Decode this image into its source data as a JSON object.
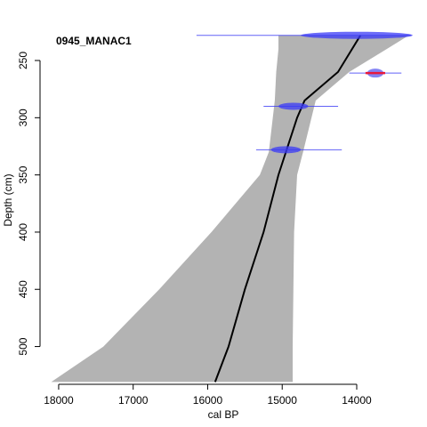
{
  "chart_data": {
    "type": "age-depth",
    "title": "0945_MANAC1",
    "xlabel": "cal BP",
    "ylabel": "Depth (cm)",
    "x_reversed": true,
    "xlim": [
      18250,
      13200
    ],
    "ylim": [
      533,
      222
    ],
    "x_ticks": [
      18000,
      17000,
      16000,
      15000,
      14000
    ],
    "y_ticks": [
      250,
      300,
      350,
      400,
      450,
      500
    ],
    "envelope_color": "#b3b3b3",
    "median_color": "#000000",
    "date_color": "#3b3bf5",
    "calibrated_color": "#e8193d",
    "envelope": {
      "depth": [
        228,
        240,
        260,
        285,
        330,
        350,
        400,
        450,
        500,
        531
      ],
      "old_bound": [
        15050,
        15050,
        15080,
        15100,
        15180,
        15300,
        15950,
        16650,
        17400,
        18100
      ],
      "young_bound": [
        13300,
        13600,
        14100,
        14550,
        14720,
        14800,
        14840,
        14850,
        14860,
        14860
      ]
    },
    "median": {
      "depth": [
        228,
        260,
        285,
        300,
        350,
        400,
        450,
        500,
        531
      ],
      "age": [
        13950,
        14250,
        14700,
        14800,
        15050,
        15250,
        15500,
        15720,
        15900
      ]
    },
    "dates": [
      {
        "depth": 228,
        "age": 14000,
        "min_age": 16150,
        "max_age": 13270,
        "spread": 1500,
        "calibrated": false
      },
      {
        "depth": 261,
        "age": 13750,
        "min_age": 14100,
        "max_age": 13400,
        "spread": 220,
        "calibrated": true
      },
      {
        "depth": 290,
        "age": 14850,
        "min_age": 15250,
        "max_age": 14250,
        "spread": 400,
        "calibrated": false
      },
      {
        "depth": 328,
        "age": 14950,
        "min_age": 15350,
        "max_age": 14200,
        "spread": 400,
        "calibrated": false
      }
    ]
  }
}
